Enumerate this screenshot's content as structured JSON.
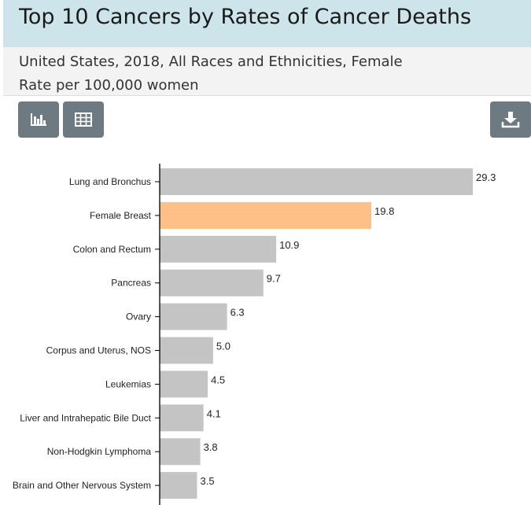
{
  "header": {
    "title": "Top 10 Cancers by Rates of Cancer Deaths",
    "subtitle_line1": "United States, 2018, All Races and Ethnicities, Female",
    "subtitle_line2": "Rate per 100,000 women"
  },
  "toolbar": {
    "bar_chart_icon": "bar-chart-icon",
    "table_icon": "table-icon",
    "download_icon": "download-icon",
    "button_color": "#6e7a82"
  },
  "chart_data": {
    "type": "bar",
    "orientation": "horizontal",
    "categories": [
      "Lung and Bronchus",
      "Female Breast",
      "Colon and Rectum",
      "Pancreas",
      "Ovary",
      "Corpus and Uterus, NOS",
      "Leukemias",
      "Liver and Intrahepatic Bile Duct",
      "Non-Hodgkin Lymphoma",
      "Brain and Other Nervous System"
    ],
    "values": [
      29.3,
      19.8,
      10.9,
      9.7,
      6.3,
      5.0,
      4.5,
      4.1,
      3.8,
      3.5
    ],
    "value_labels": [
      "29.3",
      "19.8",
      "10.9",
      "9.7",
      "6.3",
      "5.0",
      "4.5",
      "4.1",
      "3.8",
      "3.5"
    ],
    "highlight_index": 1,
    "bar_color": "#c4c4c4",
    "highlight_color": "#ffc088",
    "xlim": [
      0,
      29.3
    ],
    "grid": false
  }
}
